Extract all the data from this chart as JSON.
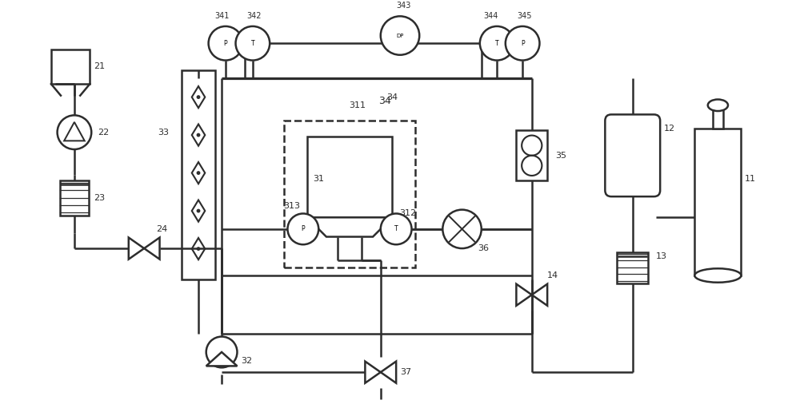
{
  "bg_color": "#ffffff",
  "line_color": "#2d2d2d",
  "lw": 1.8,
  "figsize": [
    10.0,
    5.16
  ],
  "dpi": 100,
  "xlim": [
    0,
    100
  ],
  "ylim": [
    0,
    52
  ]
}
